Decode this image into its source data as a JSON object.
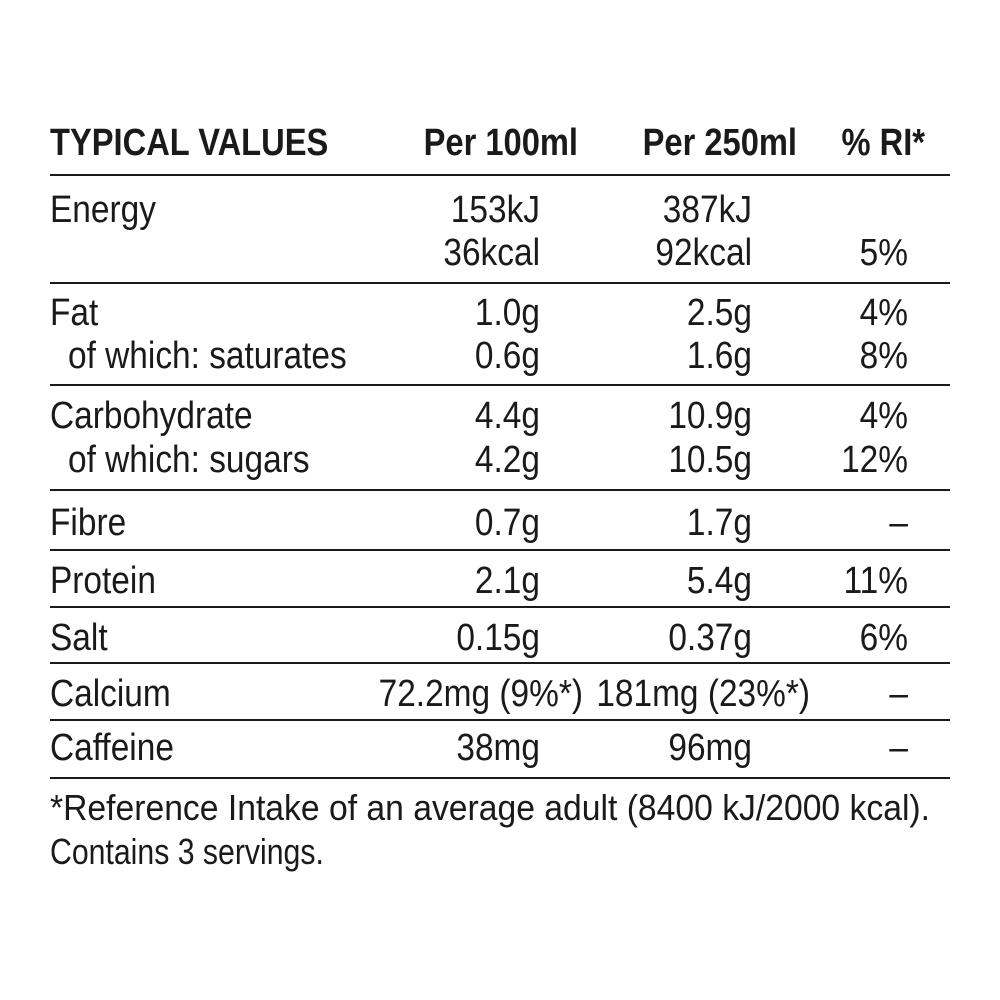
{
  "table": {
    "header": [
      "TYPICAL VALUES",
      "Per 100ml",
      "Per 250ml",
      "% RI*"
    ],
    "rows": [
      [
        {
          "label": "Energy",
          "per100": "153kJ",
          "per250": "387kJ"
        },
        {
          "per100": "36kcal",
          "per250": "92kcal",
          "ri": "5%"
        }
      ],
      [
        {
          "label": "Fat",
          "per100": "1.0g",
          "per250": "2.5g",
          "ri": "4%"
        },
        {
          "label": "of which: saturates",
          "per100": "0.6g",
          "per250": "1.6g",
          "ri": "8%"
        }
      ],
      [
        {
          "label": "Carbohydrate",
          "per100": "4.4g",
          "per250": "10.9g",
          "ri": "4%"
        },
        {
          "label": "of which: sugars",
          "per100": "4.2g",
          "per250": "10.5g",
          "ri": "12%"
        }
      ],
      [
        {
          "label": "Fibre",
          "per100": "0.7g",
          "per250": "1.7g",
          "ri": "–"
        }
      ],
      [
        {
          "label": "Protein",
          "per100": "2.1g",
          "per250": "5.4g",
          "ri": "11%"
        }
      ],
      [
        {
          "label": "Salt",
          "per100": "0.15g",
          "per250": "0.37g",
          "ri": "6%"
        }
      ],
      [
        {
          "label": "Calcium",
          "per100": "72.2mg (9%*)",
          "per250": "181mg (23%*)",
          "ri": "–"
        }
      ],
      [
        {
          "label": "Caffeine",
          "per100": "38mg",
          "per250": "96mg",
          "ri": "–"
        }
      ]
    ]
  },
  "footer": [
    "*Reference Intake of an average adult (8400 kJ/2000 kcal).",
    "Contains 3 servings."
  ]
}
